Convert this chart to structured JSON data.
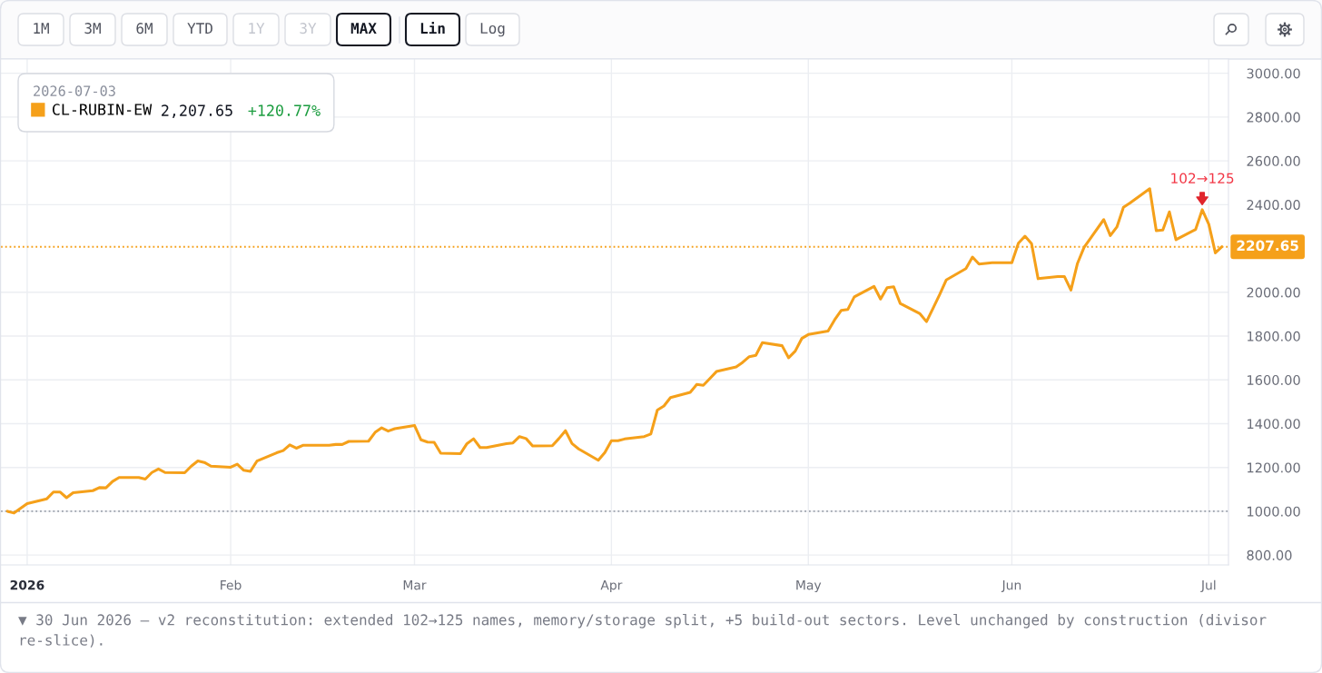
{
  "chart_data": {
    "type": "line",
    "x": [
      "2025-12-30",
      "2025-12-31",
      "2026-01-02",
      "2026-01-05",
      "2026-01-06",
      "2026-01-07",
      "2026-01-08",
      "2026-01-09",
      "2026-01-12",
      "2026-01-13",
      "2026-01-14",
      "2026-01-15",
      "2026-01-16",
      "2026-01-19",
      "2026-01-20",
      "2026-01-21",
      "2026-01-22",
      "2026-01-23",
      "2026-01-26",
      "2026-01-27",
      "2026-01-28",
      "2026-01-29",
      "2026-01-30",
      "2026-02-02",
      "2026-02-03",
      "2026-02-04",
      "2026-02-05",
      "2026-02-06",
      "2026-02-09",
      "2026-02-10",
      "2026-02-11",
      "2026-02-12",
      "2026-02-13",
      "2026-02-16",
      "2026-02-17",
      "2026-02-18",
      "2026-02-19",
      "2026-02-20",
      "2026-02-23",
      "2026-02-24",
      "2026-02-25",
      "2026-02-26",
      "2026-02-27",
      "2026-03-02",
      "2026-03-03",
      "2026-03-04",
      "2026-03-05",
      "2026-03-06",
      "2026-03-09",
      "2026-03-10",
      "2026-03-11",
      "2026-03-12",
      "2026-03-13",
      "2026-03-16",
      "2026-03-17",
      "2026-03-18",
      "2026-03-19",
      "2026-03-20",
      "2026-03-23",
      "2026-03-24",
      "2026-03-25",
      "2026-03-26",
      "2026-03-27",
      "2026-03-30",
      "2026-03-31",
      "2026-04-01",
      "2026-04-02",
      "2026-04-03",
      "2026-04-06",
      "2026-04-07",
      "2026-04-08",
      "2026-04-09",
      "2026-04-10",
      "2026-04-13",
      "2026-04-14",
      "2026-04-15",
      "2026-04-16",
      "2026-04-17",
      "2026-04-20",
      "2026-04-21",
      "2026-04-22",
      "2026-04-23",
      "2026-04-24",
      "2026-04-27",
      "2026-04-28",
      "2026-04-29",
      "2026-04-30",
      "2026-05-01",
      "2026-05-04",
      "2026-05-05",
      "2026-05-06",
      "2026-05-07",
      "2026-05-08",
      "2026-05-11",
      "2026-05-12",
      "2026-05-13",
      "2026-05-14",
      "2026-05-15",
      "2026-05-18",
      "2026-05-19",
      "2026-05-20",
      "2026-05-21",
      "2026-05-22",
      "2026-05-25",
      "2026-05-26",
      "2026-05-27",
      "2026-05-28",
      "2026-05-29",
      "2026-06-01",
      "2026-06-02",
      "2026-06-03",
      "2026-06-04",
      "2026-06-05",
      "2026-06-08",
      "2026-06-09",
      "2026-06-10",
      "2026-06-11",
      "2026-06-12",
      "2026-06-15",
      "2026-06-16",
      "2026-06-17",
      "2026-06-18",
      "2026-06-19",
      "2026-06-22",
      "2026-06-23",
      "2026-06-24",
      "2026-06-25",
      "2026-06-26",
      "2026-06-29",
      "2026-06-30",
      "2026-07-01",
      "2026-07-02",
      "2026-07-03"
    ],
    "series": [
      {
        "name": "CL-RUBIN-EW",
        "color": "#f5a01a",
        "values": [
          1000,
          992,
          1035,
          1057,
          1088,
          1088,
          1062,
          1085,
          1094,
          1108,
          1107,
          1136,
          1154,
          1154,
          1147,
          1177,
          1193,
          1177,
          1176,
          1206,
          1230,
          1223,
          1206,
          1201,
          1215,
          1187,
          1182,
          1229,
          1267,
          1277,
          1303,
          1288,
          1301,
          1301,
          1301,
          1305,
          1305,
          1319,
          1320,
          1360,
          1381,
          1366,
          1377,
          1392,
          1326,
          1316,
          1315,
          1265,
          1263,
          1309,
          1331,
          1291,
          1291,
          1309,
          1312,
          1341,
          1332,
          1298,
          1299,
          1332,
          1368,
          1309,
          1285,
          1233,
          1268,
          1322,
          1322,
          1330,
          1341,
          1353,
          1462,
          1481,
          1519,
          1543,
          1579,
          1575,
          1606,
          1638,
          1659,
          1680,
          1706,
          1712,
          1770,
          1756,
          1701,
          1731,
          1789,
          1807,
          1823,
          1874,
          1917,
          1921,
          1979,
          2027,
          1969,
          2021,
          2025,
          1949,
          1902,
          1866,
          1927,
          1989,
          2056,
          2108,
          2161,
          2129,
          2132,
          2135,
          2135,
          2224,
          2256,
          2222,
          2062,
          2072,
          2072,
          2010,
          2132,
          2205,
          2332,
          2259,
          2298,
          2388,
          2408,
          2473,
          2281,
          2284,
          2367,
          2240,
          2287,
          2377,
          2311,
          2180,
          2207.65
        ]
      }
    ],
    "xlim": [
      "2025-12-29",
      "2026-07-04"
    ],
    "xticks": [
      {
        "value": "2026-01-02",
        "label": "2026"
      },
      {
        "value": "2026-02-02",
        "label": "Feb"
      },
      {
        "value": "2026-03-02",
        "label": "Mar"
      },
      {
        "value": "2026-04-01",
        "label": "Apr"
      },
      {
        "value": "2026-05-01",
        "label": "May"
      },
      {
        "value": "2026-06-01",
        "label": "Jun"
      },
      {
        "value": "2026-07-01",
        "label": "Jul"
      }
    ],
    "ylim": [
      755,
      3065
    ],
    "yticks": [
      {
        "value": 800,
        "label": "800.00"
      },
      {
        "value": 1000,
        "label": "1000.00"
      },
      {
        "value": 1200,
        "label": "1200.00"
      },
      {
        "value": 1400,
        "label": "1400.00"
      },
      {
        "value": 1600,
        "label": "1600.00"
      },
      {
        "value": 1800,
        "label": "1800.00"
      },
      {
        "value": 2000,
        "label": "2000.00"
      },
      {
        "value": 2400,
        "label": "2400.00"
      },
      {
        "value": 2600,
        "label": "2600.00"
      },
      {
        "value": 2800,
        "label": "2800.00"
      },
      {
        "value": 3000,
        "label": "3000.00"
      }
    ],
    "grid": true,
    "legend": "top left",
    "legend_title": "2026-07-03",
    "ref_lines": [
      {
        "axis": "y",
        "value": 2207.65,
        "label": "2207.65",
        "color": "#f5a01a",
        "line_style": "dotted"
      },
      {
        "axis": "y",
        "value": 1000,
        "color": "#9aa0ab",
        "line_style": "dotted"
      }
    ],
    "annotations": [
      "2,207.65",
      "+120.77%",
      {
        "text": "102→125",
        "x": "2026-06-30",
        "y": 2377
      },
      "▼ 30 Jun 2026 — v2 reconstitution: extended 102→125 names, memory/storage split, +5 build-out sectors. Level unchanged by construction (divisor re-slice).",
      "1M",
      "3M",
      "6M",
      "YTD",
      "1Y",
      "3Y",
      "MAX",
      "Lin",
      "Log"
    ]
  }
}
